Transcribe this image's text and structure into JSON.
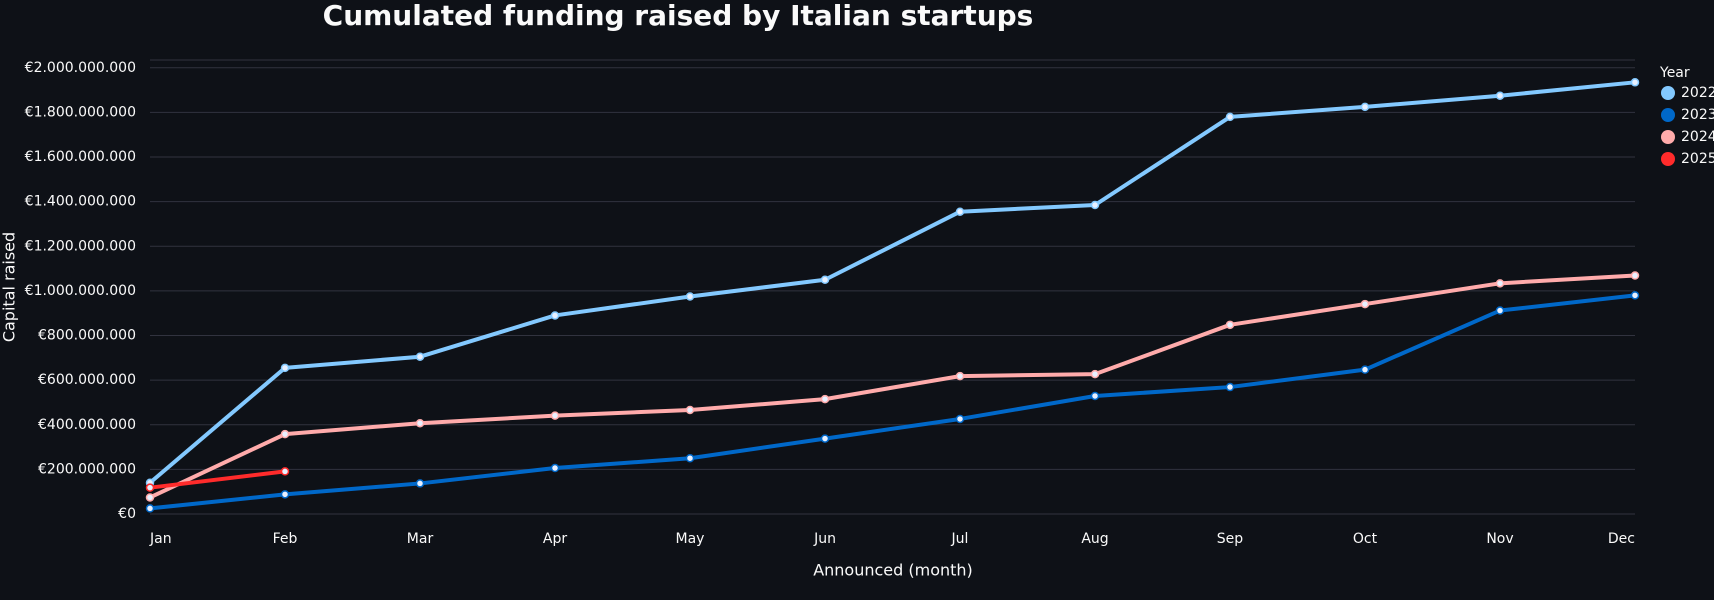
{
  "chart_data": {
    "type": "line",
    "title": "Cumulated funding raised by Italian startups",
    "x_label": "Announced (month)",
    "y_label": "Capital raised",
    "legend_title": "Year",
    "legend_position": "right",
    "grid": true,
    "categories": [
      "Jan",
      "Feb",
      "Mar",
      "Apr",
      "May",
      "Jun",
      "Jul",
      "Aug",
      "Sep",
      "Oct",
      "Nov",
      "Dec"
    ],
    "series": [
      {
        "name": "2022",
        "color": "#83c9ff",
        "values": [
          140000000,
          655000000,
          705000000,
          890000000,
          975000000,
          1050000000,
          1355000000,
          1385000000,
          1780000000,
          1825000000,
          1875000000,
          1935000000
        ]
      },
      {
        "name": "2023",
        "color": "#0068c9",
        "values": [
          25000000,
          88000000,
          137000000,
          206000000,
          250000000,
          338000000,
          426000000,
          529000000,
          569000000,
          647000000,
          912000000,
          980000000
        ]
      },
      {
        "name": "2024",
        "color": "#ffabab",
        "values": [
          74000000,
          358000000,
          407000000,
          441000000,
          466000000,
          515000000,
          618000000,
          627000000,
          848000000,
          941000000,
          1034000000,
          1069000000
        ]
      },
      {
        "name": "2025",
        "color": "#ff2b2b",
        "values": [
          118000000,
          191000000,
          null,
          null,
          null,
          null,
          null,
          null,
          null,
          null,
          null,
          null
        ]
      }
    ],
    "ylim": [
      0,
      2035000000
    ],
    "yticks": [
      {
        "value": 0,
        "label": "€0"
      },
      {
        "value": 200000000,
        "label": "€200.000.000"
      },
      {
        "value": 400000000,
        "label": "€400.000.000"
      },
      {
        "value": 600000000,
        "label": "€600.000.000"
      },
      {
        "value": 800000000,
        "label": "€800.000.000"
      },
      {
        "value": 1000000000,
        "label": "€1.000.000.000"
      },
      {
        "value": 1200000000,
        "label": "€1.200.000.000"
      },
      {
        "value": 1400000000,
        "label": "€1.400.000.000"
      },
      {
        "value": 1600000000,
        "label": "€1.600.000.000"
      },
      {
        "value": 1800000000,
        "label": "€1.800.000.000"
      },
      {
        "value": 2000000000,
        "label": "€2.000.000.000"
      }
    ]
  }
}
